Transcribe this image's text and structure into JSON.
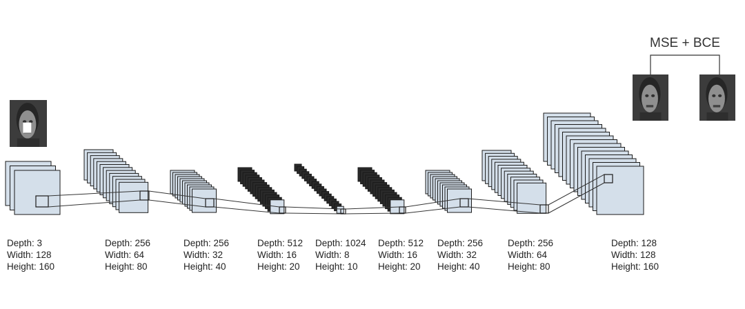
{
  "colors": {
    "slice_fill": "#d4dfea",
    "slice_fill_dark": "#2a2a2a",
    "slice_stroke": "#1a1a1a",
    "connector": "#333333",
    "photo_frame": "#3c3c3c",
    "photo_face": "#8f8f8f",
    "mask": "#ffffff"
  },
  "input_image": {
    "icon": "masked-face-photo-icon"
  },
  "output_images": [
    {
      "icon": "reconstructed-face-photo-icon"
    },
    {
      "icon": "target-face-photo-icon"
    }
  ],
  "loss": {
    "label": "MSE + BCE"
  },
  "layers": [
    {
      "depth": 3,
      "width": 128,
      "height": 160,
      "lines": [
        "Depth: 3",
        "Width: 128",
        "Height: 160"
      ]
    },
    {
      "depth": 256,
      "width": 64,
      "height": 80,
      "lines": [
        "Depth: 256",
        "Width: 64",
        "Height: 80"
      ]
    },
    {
      "depth": 256,
      "width": 32,
      "height": 40,
      "lines": [
        "Depth: 256",
        "Width: 32",
        "Height: 40"
      ]
    },
    {
      "depth": 512,
      "width": 16,
      "height": 20,
      "lines": [
        "Depth: 512",
        "Width: 16",
        "Height: 20"
      ]
    },
    {
      "depth": 1024,
      "width": 8,
      "height": 10,
      "lines": [
        "Depth: 1024",
        "Width: 8",
        "Height: 10"
      ]
    },
    {
      "depth": 512,
      "width": 16,
      "height": 20,
      "lines": [
        "Depth: 512",
        "Width: 16",
        "Height: 20"
      ]
    },
    {
      "depth": 256,
      "width": 32,
      "height": 40,
      "lines": [
        "Depth: 256",
        "Width: 32",
        "Height: 40"
      ]
    },
    {
      "depth": 256,
      "width": 64,
      "height": 80,
      "lines": [
        "Depth: 256",
        "Width: 64",
        "Height: 80"
      ]
    },
    {
      "depth": 128,
      "width": 128,
      "height": 160,
      "lines": [
        "Depth: 128",
        "Width: 128",
        "Height: 160"
      ]
    }
  ]
}
